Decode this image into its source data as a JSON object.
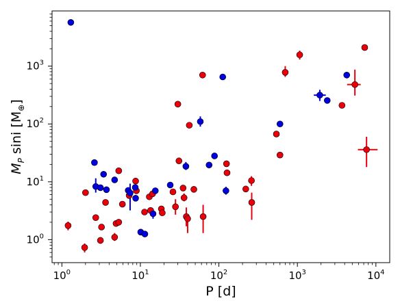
{
  "chart_data": {
    "type": "scatter",
    "xlabel": "P [d]",
    "ylabel": "M_P sini [M_⊕]",
    "x_scale": "log",
    "y_scale": "log",
    "xlim": [
      0.75,
      15000
    ],
    "ylim": [
      0.4,
      9000
    ],
    "grid": false,
    "x_ticks": [
      {
        "value": 1,
        "base": "10",
        "exp": "0"
      },
      {
        "value": 10,
        "base": "10",
        "exp": "1"
      },
      {
        "value": 100,
        "base": "10",
        "exp": "2"
      },
      {
        "value": 1000,
        "base": "10",
        "exp": "3"
      },
      {
        "value": 10000,
        "base": "10",
        "exp": "4"
      }
    ],
    "y_ticks": [
      {
        "value": 1,
        "base": "10",
        "exp": "0"
      },
      {
        "value": 10,
        "base": "10",
        "exp": "1"
      },
      {
        "value": 100,
        "base": "10",
        "exp": "2"
      },
      {
        "value": 1000,
        "base": "10",
        "exp": "3"
      }
    ],
    "series": [
      {
        "color": "#e8000b",
        "points": [
          {
            "x": 1.2,
            "y": 1.75,
            "ylo": 1.45,
            "yhi": 2.05
          },
          {
            "x": 1.95,
            "y": 0.73,
            "ylo": 0.6,
            "yhi": 0.86
          },
          {
            "x": 2.0,
            "y": 6.5
          },
          {
            "x": 2.7,
            "y": 2.4
          },
          {
            "x": 3.1,
            "y": 0.97,
            "ylo": 0.85,
            "yhi": 1.1
          },
          {
            "x": 3.2,
            "y": 1.65
          },
          {
            "x": 3.6,
            "y": 4.4
          },
          {
            "x": 4.7,
            "y": 1.1,
            "ylo": 0.95,
            "yhi": 1.3
          },
          {
            "x": 4.9,
            "y": 1.9
          },
          {
            "x": 5.3,
            "y": 2.0
          },
          {
            "x": 5.3,
            "y": 15.5
          },
          {
            "x": 5.9,
            "y": 4.1
          },
          {
            "x": 7.2,
            "y": 5.8
          },
          {
            "x": 8.7,
            "y": 10.3
          },
          {
            "x": 8.9,
            "y": 7.0
          },
          {
            "x": 11.3,
            "y": 3.0
          },
          {
            "x": 13.0,
            "y": 5.5
          },
          {
            "x": 13.5,
            "y": 3.2
          },
          {
            "x": 14.3,
            "y": 6.2
          },
          {
            "x": 18.5,
            "y": 3.4
          },
          {
            "x": 19.0,
            "y": 2.9
          },
          {
            "x": 26.0,
            "y": 6.7
          },
          {
            "x": 28.0,
            "y": 3.7,
            "ylo": 2.7,
            "yhi": 5.0
          },
          {
            "x": 30.0,
            "y": 220
          },
          {
            "x": 31.0,
            "y": 23
          },
          {
            "x": 35.0,
            "y": 7.8
          },
          {
            "x": 36.0,
            "y": 5.3,
            "ylo": 4.6,
            "yhi": 6.3
          },
          {
            "x": 38.5,
            "y": 2.5,
            "ylo": 1.7,
            "yhi": 3.6
          },
          {
            "x": 40.0,
            "y": 2.3,
            "ylo": 1.3,
            "yhi": 2.5
          },
          {
            "x": 42.0,
            "y": 95
          },
          {
            "x": 48.0,
            "y": 7.4
          },
          {
            "x": 62.0,
            "y": 700
          },
          {
            "x": 63.0,
            "y": 2.5,
            "ylo": 1.3,
            "yhi": 4.0
          },
          {
            "x": 125,
            "y": 20.5
          },
          {
            "x": 127,
            "y": 14.3
          },
          {
            "x": 220,
            "y": 7.5
          },
          {
            "x": 260,
            "y": 10.5,
            "ylo": 8.5,
            "yhi": 12.5
          },
          {
            "x": 262,
            "y": 4.4,
            "ylo": 2.2,
            "yhi": 6.5
          },
          {
            "x": 540,
            "y": 67
          },
          {
            "x": 600,
            "y": 29
          },
          {
            "x": 700,
            "y": 780,
            "ylo": 650,
            "yhi": 1000
          },
          {
            "x": 1070,
            "y": 1570,
            "ylo": 1300,
            "yhi": 1850
          },
          {
            "x": 3700,
            "y": 210
          },
          {
            "x": 5400,
            "y": 480,
            "ylo": 310,
            "yhi": 870,
            "xlo": 4300,
            "xhi": 6400
          },
          {
            "x": 7200,
            "y": 2100
          },
          {
            "x": 7600,
            "y": 36,
            "ylo": 18,
            "yhi": 60,
            "xlo": 5900,
            "xhi": 10500
          }
        ]
      },
      {
        "color": "#0000dd",
        "points": [
          {
            "x": 1.3,
            "y": 5700
          },
          {
            "x": 2.6,
            "y": 21.5
          },
          {
            "x": 2.7,
            "y": 8.3,
            "ylo": 6.5,
            "yhi": 11.5
          },
          {
            "x": 3.1,
            "y": 7.9
          },
          {
            "x": 3.4,
            "y": 13.5
          },
          {
            "x": 3.7,
            "y": 7.3
          },
          {
            "x": 4.7,
            "y": 10.8
          },
          {
            "x": 7.0,
            "y": 7.1
          },
          {
            "x": 7.4,
            "y": 6.4,
            "ylo": 3.2,
            "yhi": 9.3
          },
          {
            "x": 8.6,
            "y": 8.0
          },
          {
            "x": 8.7,
            "y": 5.2
          },
          {
            "x": 10.1,
            "y": 1.35
          },
          {
            "x": 11.4,
            "y": 1.25
          },
          {
            "x": 14.5,
            "y": 2.8,
            "ylo": 2.3,
            "yhi": 3.4
          },
          {
            "x": 15.5,
            "y": 7.0
          },
          {
            "x": 24.0,
            "y": 8.8
          },
          {
            "x": 38.0,
            "y": 18.5,
            "ylo": 16,
            "yhi": 22
          },
          {
            "x": 58.0,
            "y": 110,
            "ylo": 90,
            "yhi": 135
          },
          {
            "x": 75.0,
            "y": 19.5
          },
          {
            "x": 88.0,
            "y": 28
          },
          {
            "x": 112,
            "y": 650
          },
          {
            "x": 123,
            "y": 7.0,
            "ylo": 6.0,
            "yhi": 8.2
          },
          {
            "x": 600,
            "y": 100
          },
          {
            "x": 1930,
            "y": 315,
            "ylo": 250,
            "yhi": 390,
            "xlo": 1620,
            "xhi": 2300
          },
          {
            "x": 2400,
            "y": 255
          },
          {
            "x": 4250,
            "y": 700
          }
        ]
      }
    ]
  }
}
